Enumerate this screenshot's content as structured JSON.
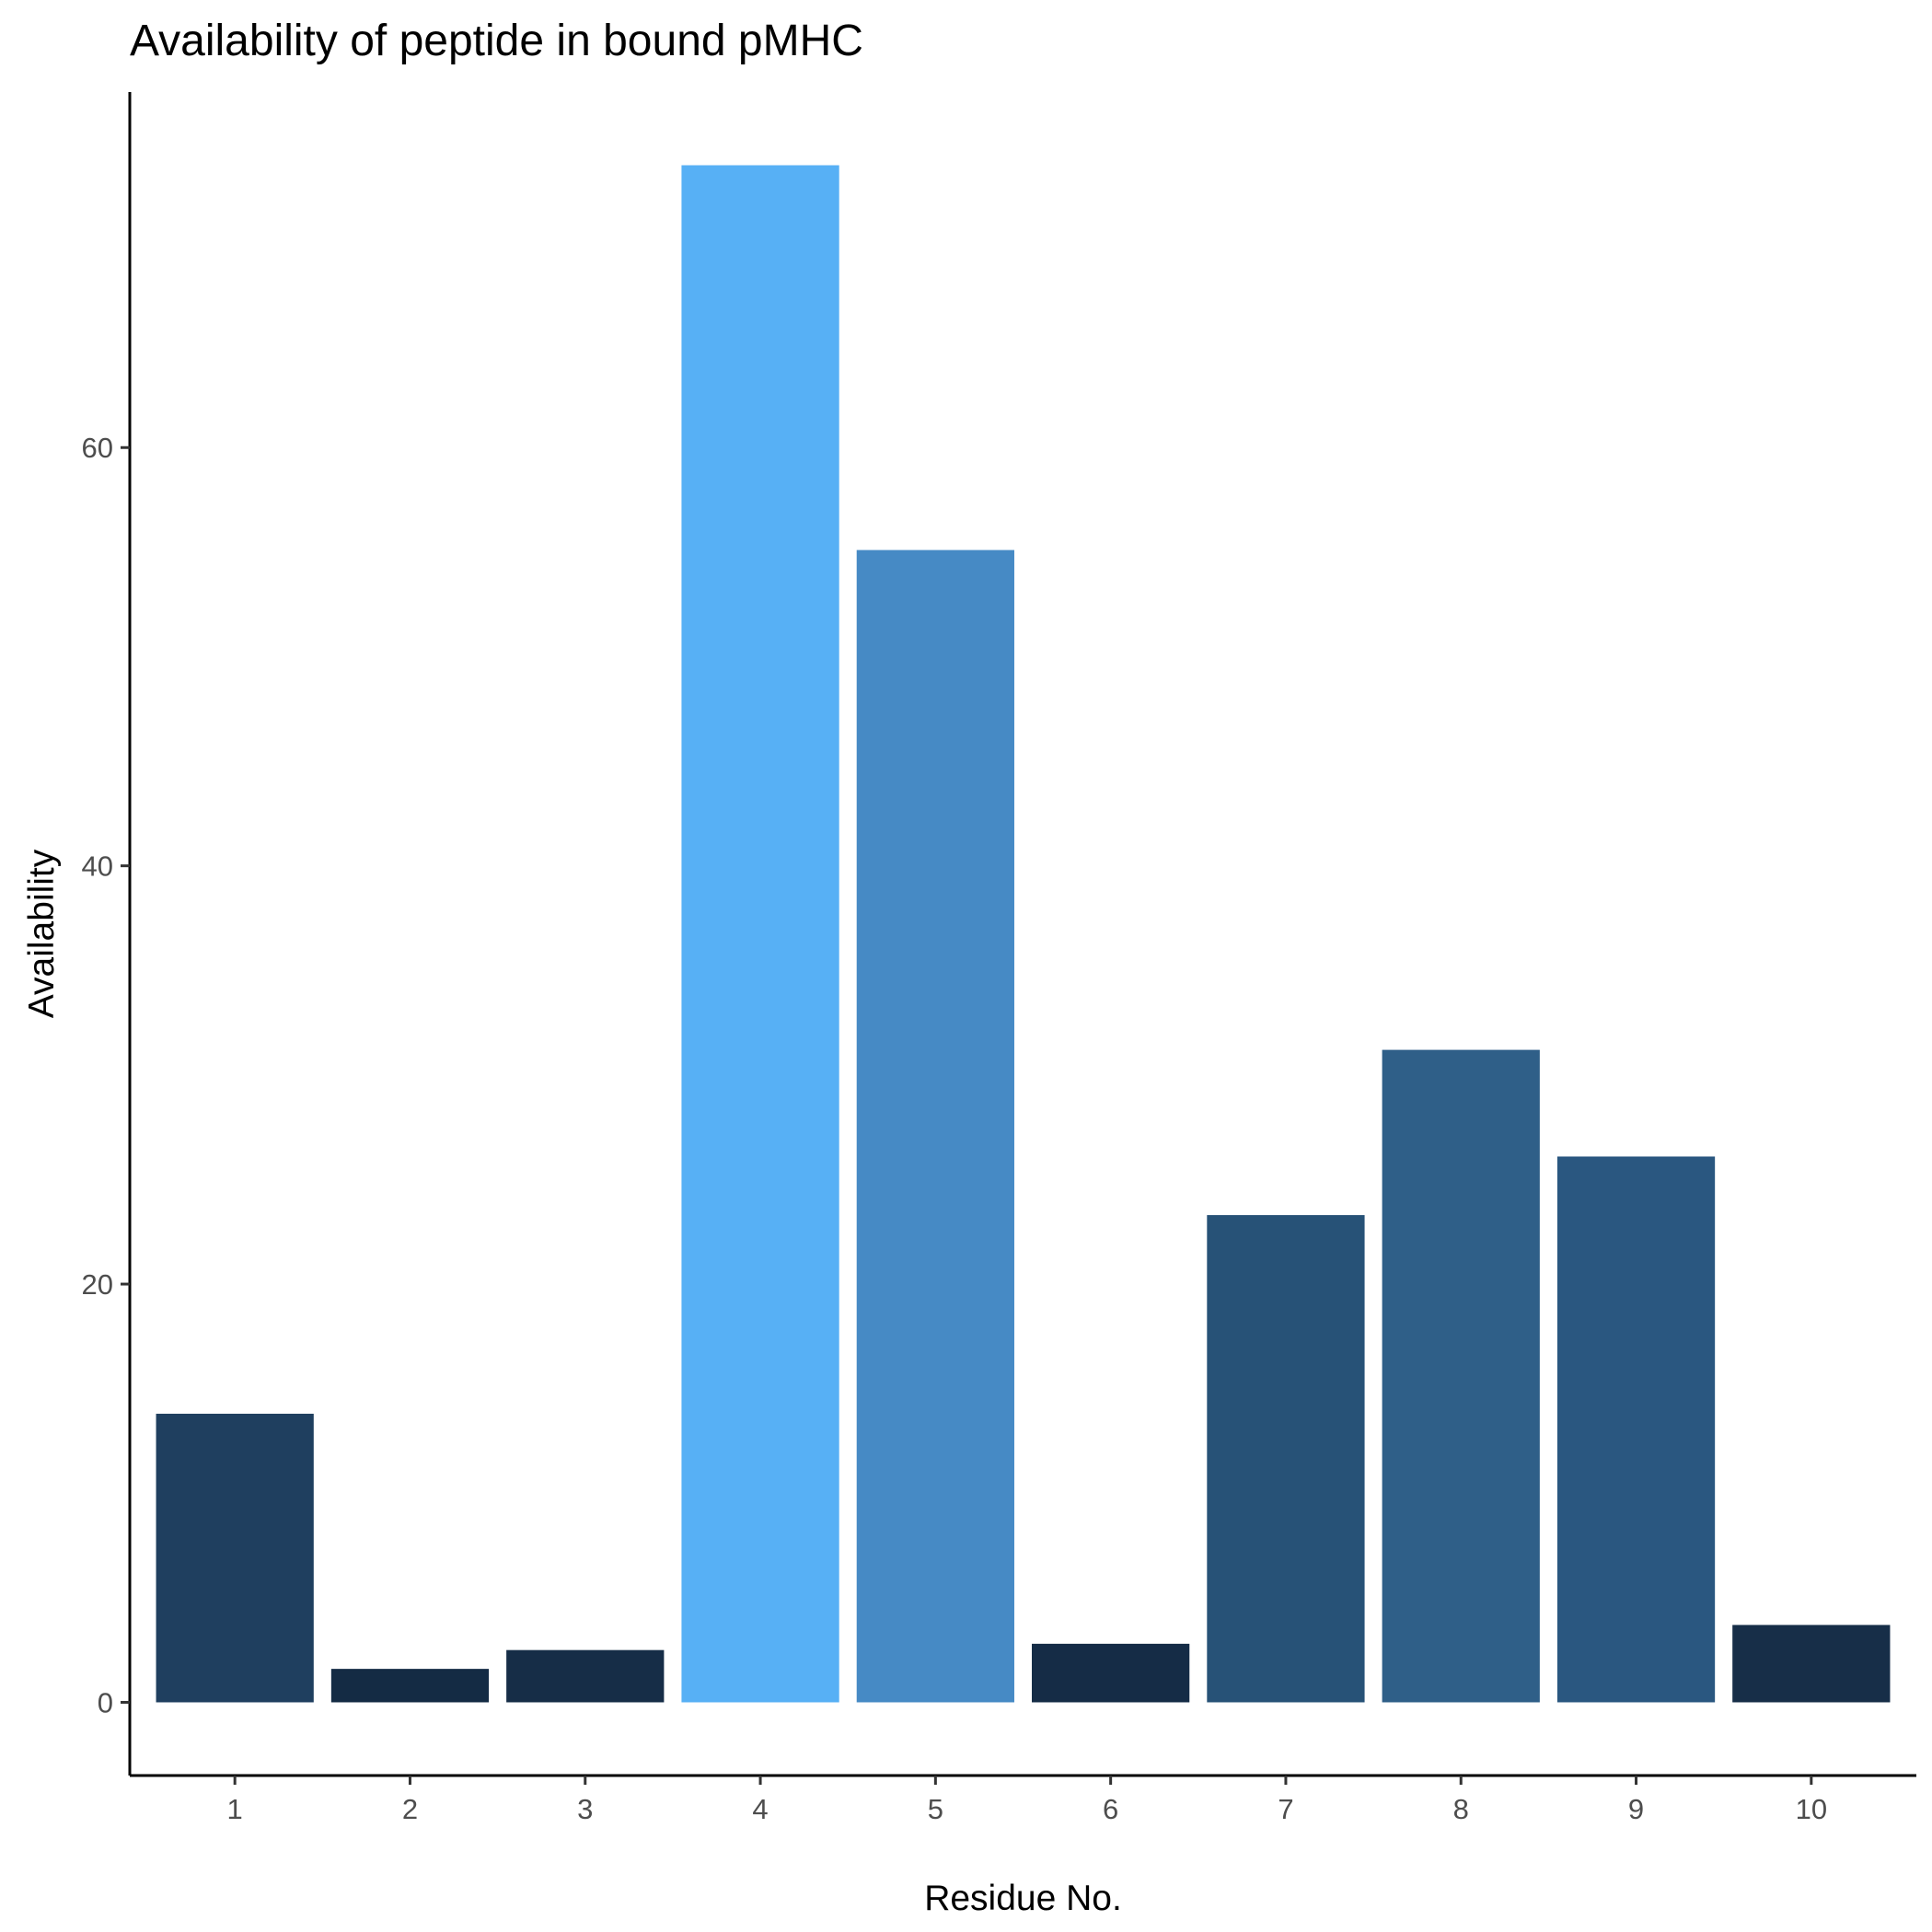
{
  "chart_data": {
    "type": "bar",
    "title": "Availability of peptide in bound pMHC",
    "xlabel": "Residue No.",
    "ylabel": "Availability",
    "categories": [
      "1",
      "2",
      "3",
      "4",
      "5",
      "6",
      "7",
      "8",
      "9",
      "10"
    ],
    "values": [
      13.8,
      1.6,
      2.5,
      73.5,
      55.1,
      2.8,
      23.3,
      31.2,
      26.1,
      3.7
    ],
    "bar_colors": [
      "#1f3f5f",
      "#142b44",
      "#162d47",
      "#57b0f5",
      "#468ac5",
      "#152c46",
      "#275277",
      "#2f5f88",
      "#2a5780",
      "#172e48"
    ],
    "y_ticks": [
      0,
      20,
      40,
      60
    ],
    "y_tick_labels": [
      "0",
      "20",
      "40",
      "60"
    ],
    "ylim": [
      -3.5,
      77
    ],
    "grid": false,
    "legend": "none"
  }
}
